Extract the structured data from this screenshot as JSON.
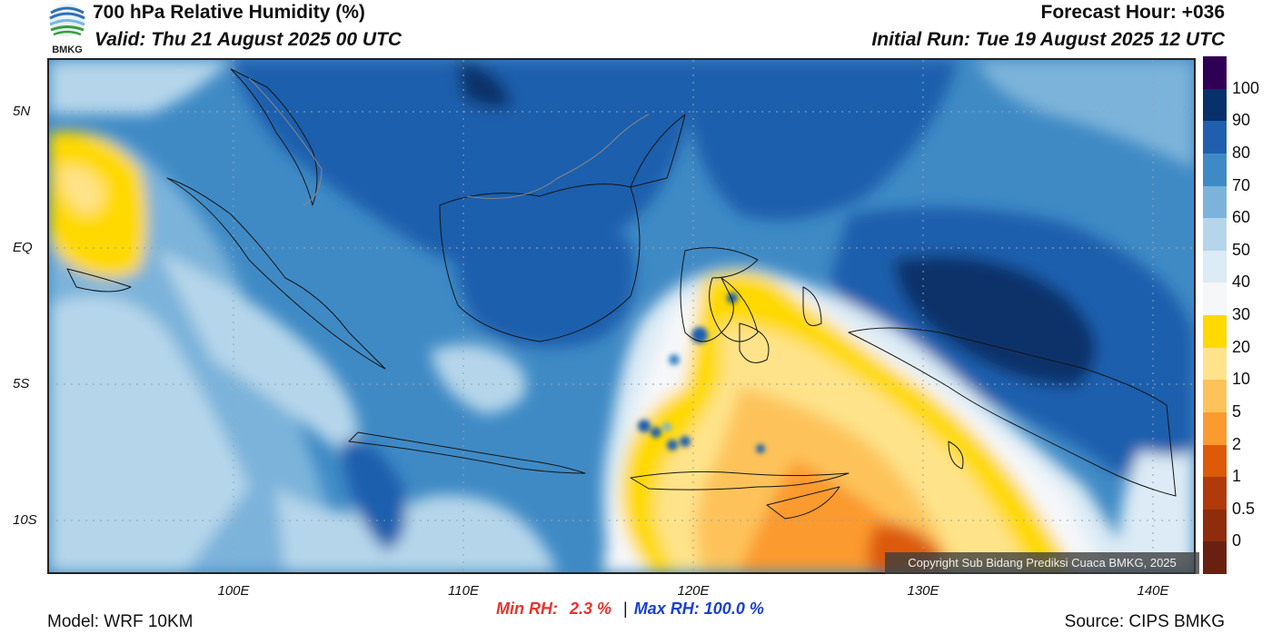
{
  "header": {
    "title": "700 hPa Relative Humidity (%)",
    "valid": "Valid: Thu 21 August 2025 00 UTC",
    "forecast_hour": "Forecast Hour: +036",
    "initial_run": "Initial Run: Tue 19 August 2025 12 UTC",
    "logo_text": "BMKG"
  },
  "axes": {
    "lat_labels": [
      "5N",
      "EQ",
      "5S",
      "10S"
    ],
    "lon_labels": [
      "100E",
      "110E",
      "120E",
      "130E",
      "140E"
    ]
  },
  "colorbar": {
    "labels": [
      "100",
      "90",
      "80",
      "70",
      "60",
      "50",
      "40",
      "30",
      "20",
      "10",
      "5",
      "2",
      "1",
      "0.5",
      "0"
    ],
    "colors": [
      "#300054",
      "#08306b",
      "#1f5fad",
      "#3f8ac5",
      "#7bb3da",
      "#b5d6ea",
      "#dcebf5",
      "#f6f7f9",
      "#ffd900",
      "#fee38a",
      "#fdc35a",
      "#fb9a2e",
      "#dc5a08",
      "#b03a0b",
      "#8f2c0c",
      "#6a2010"
    ]
  },
  "stats": {
    "min_label": "Min RH:",
    "min_value": "2.3 %",
    "separator": "|",
    "max_label": "Max RH:",
    "max_value": "100.0 %"
  },
  "footer": {
    "model": "Model: WRF 10KM",
    "source": "Source: CIPS BMKG",
    "copyright": "Copyright Sub Bidang Prediksi Cuaca BMKG, 2025"
  }
}
